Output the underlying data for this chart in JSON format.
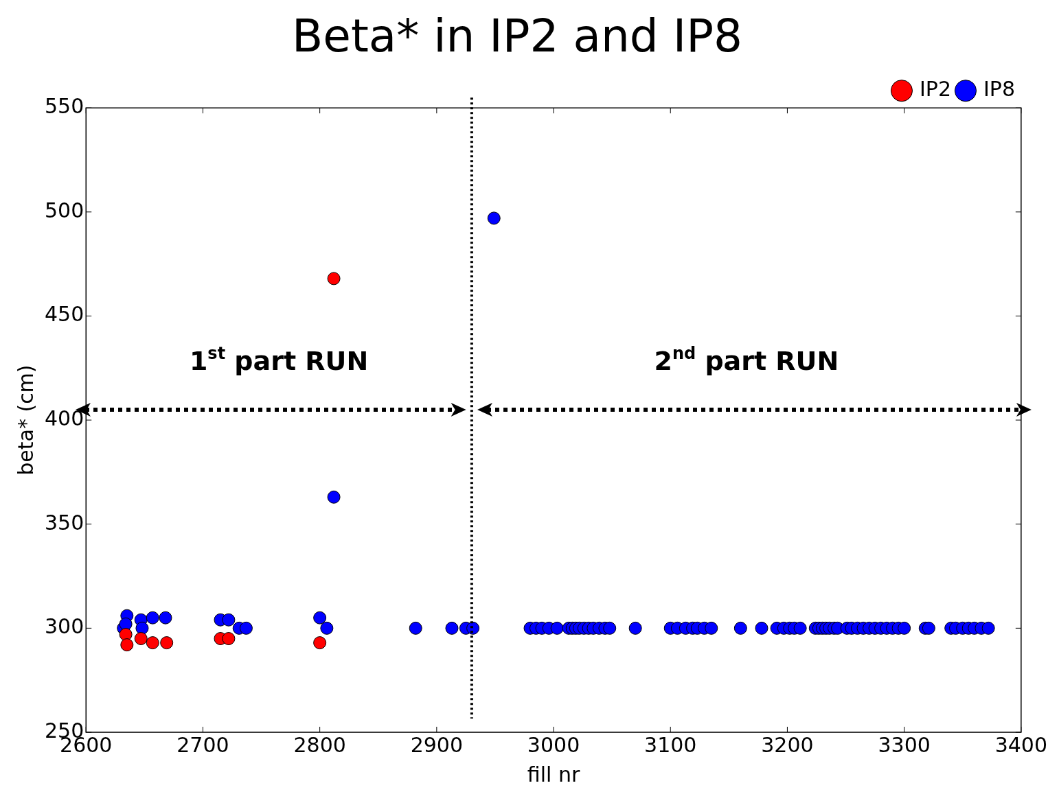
{
  "chart_data": {
    "type": "scatter",
    "title": "Beta* in IP2 and IP8",
    "xlabel": "fill nr",
    "ylabel": "beta* (cm)",
    "xlim": [
      2600,
      3400
    ],
    "xticks": [
      2600,
      2700,
      2800,
      2900,
      3000,
      3100,
      3200,
      3300,
      3400
    ],
    "ylim": [
      250,
      550
    ],
    "yticks": [
      250,
      300,
      350,
      400,
      450,
      500,
      550
    ],
    "grid": false,
    "legend": "top right",
    "marker": "circle",
    "series": [
      {
        "name": "IP2",
        "color": "#ff0000",
        "x": [
          2634,
          2635,
          2647,
          2657,
          2669,
          2715,
          2722,
          2800,
          2812
        ],
        "values": [
          297,
          292,
          295,
          293,
          293,
          295,
          295,
          293,
          468
        ]
      },
      {
        "name": "IP8",
        "color": "#0000ff",
        "x": [
          2632,
          2635,
          2634,
          2647,
          2648,
          2657,
          2668,
          2715,
          2722,
          2731,
          2737,
          2800,
          2806,
          2812,
          2882,
          2913,
          2925,
          2931,
          2949,
          2980,
          2985,
          2990,
          2996,
          3003,
          3013,
          3016,
          3019,
          3022,
          3026,
          3030,
          3034,
          3039,
          3044,
          3048,
          3070,
          3100,
          3106,
          3113,
          3119,
          3123,
          3129,
          3135,
          3160,
          3178,
          3191,
          3197,
          3202,
          3206,
          3211,
          3224,
          3227,
          3230,
          3233,
          3236,
          3240,
          3243,
          3251,
          3255,
          3260,
          3265,
          3270,
          3275,
          3280,
          3285,
          3290,
          3295,
          3300,
          3318,
          3321,
          3340,
          3344,
          3350,
          3355,
          3360,
          3366,
          3372
        ],
        "values": [
          300,
          306,
          302,
          304,
          300,
          305,
          305,
          304,
          304,
          300,
          300,
          305,
          300,
          363,
          300,
          300,
          300,
          300,
          497,
          300,
          300,
          300,
          300,
          300,
          300,
          300,
          300,
          300,
          300,
          300,
          300,
          300,
          300,
          300,
          300,
          300,
          300,
          300,
          300,
          300,
          300,
          300,
          300,
          300,
          300,
          300,
          300,
          300,
          300,
          300,
          300,
          300,
          300,
          300,
          300,
          300,
          300,
          300,
          300,
          300,
          300,
          300,
          300,
          300,
          300,
          300,
          300,
          300,
          300,
          300,
          300,
          300,
          300,
          300,
          300,
          300
        ]
      }
    ],
    "ref_lines": [
      {
        "axis": "x",
        "value": 2930,
        "color": "#000000",
        "line_style": "dotted"
      }
    ],
    "annotations": [
      "1$^{st}$ part RUN",
      "2$^{nd}$ part RUN"
    ]
  }
}
